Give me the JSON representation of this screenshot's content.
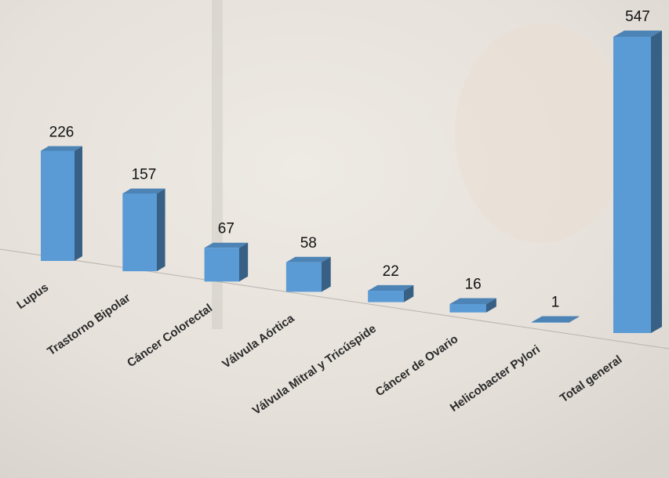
{
  "chart_data": {
    "type": "bar3d",
    "categories": [
      "Lupus",
      "Trastorno Bipolar",
      "Cáncer Colorectal",
      "Válvula Aórtica",
      "Válvula Mitral y Tricúspide",
      "Cáncer de Ovario",
      "Helicobacter Pylori",
      "Total general"
    ],
    "values": [
      226,
      157,
      67,
      58,
      22,
      16,
      1,
      547
    ],
    "color": "#5a9bd5"
  }
}
